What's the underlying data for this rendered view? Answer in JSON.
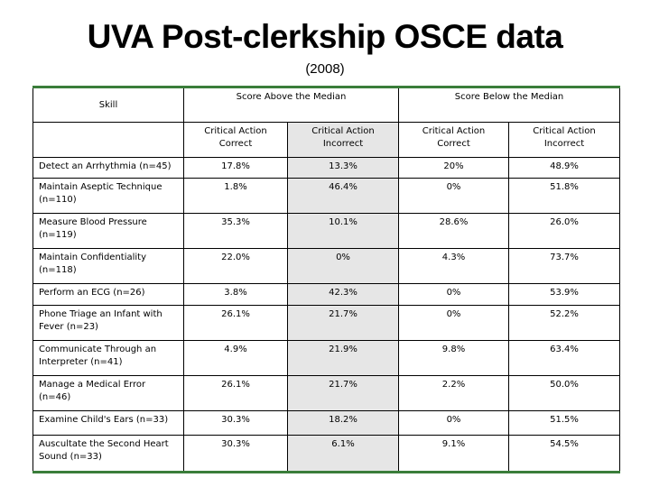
{
  "header": {
    "title": "UVA Post-clerkship OSCE data",
    "subtitle": "(2008)"
  },
  "table": {
    "skill_header": "Skill",
    "groups": [
      "Score Above the Median",
      "Score Below the Median"
    ],
    "subheaders": [
      "Critical Action Correct",
      "Critical Action Incorrect",
      "Critical Action Correct",
      "Critical Action Incorrect"
    ],
    "rows": [
      {
        "skill": "Detect an Arrhythmia (n=45)",
        "values": [
          "17.8%",
          "13.3%",
          "20%",
          "48.9%"
        ]
      },
      {
        "skill": "Maintain Aseptic Technique (n=110)",
        "values": [
          "1.8%",
          "46.4%",
          "0%",
          "51.8%"
        ]
      },
      {
        "skill": "Measure Blood Pressure (n=119)",
        "values": [
          "35.3%",
          "10.1%",
          "28.6%",
          "26.0%"
        ]
      },
      {
        "skill": "Maintain Confidentiality (n=118)",
        "values": [
          "22.0%",
          "0%",
          "4.3%",
          "73.7%"
        ]
      },
      {
        "skill": "Perform an ECG (n=26)",
        "values": [
          "3.8%",
          "42.3%",
          "0%",
          "53.9%"
        ]
      },
      {
        "skill": "Phone Triage an Infant with Fever (n=23)",
        "values": [
          "26.1%",
          "21.7%",
          "0%",
          "52.2%"
        ]
      },
      {
        "skill": "Communicate Through  an Interpreter (n=41)",
        "values": [
          "4.9%",
          "21.9%",
          "9.8%",
          "63.4%"
        ]
      },
      {
        "skill": "Manage a Medical Error (n=46)",
        "values": [
          "26.1%",
          "21.7%",
          "2.2%",
          "50.0%"
        ]
      },
      {
        "skill": "Examine Child's Ears (n=33)",
        "values": [
          "30.3%",
          "18.2%",
          "0%",
          "51.5%"
        ]
      },
      {
        "skill": "Auscultate the Second Heart Sound (n=33)",
        "values": [
          "30.3%",
          "6.1%",
          "9.1%",
          "54.5%"
        ]
      }
    ]
  },
  "colors": {
    "accent_border": "#3a7d3a",
    "shaded_column": "#e6e6e6"
  }
}
